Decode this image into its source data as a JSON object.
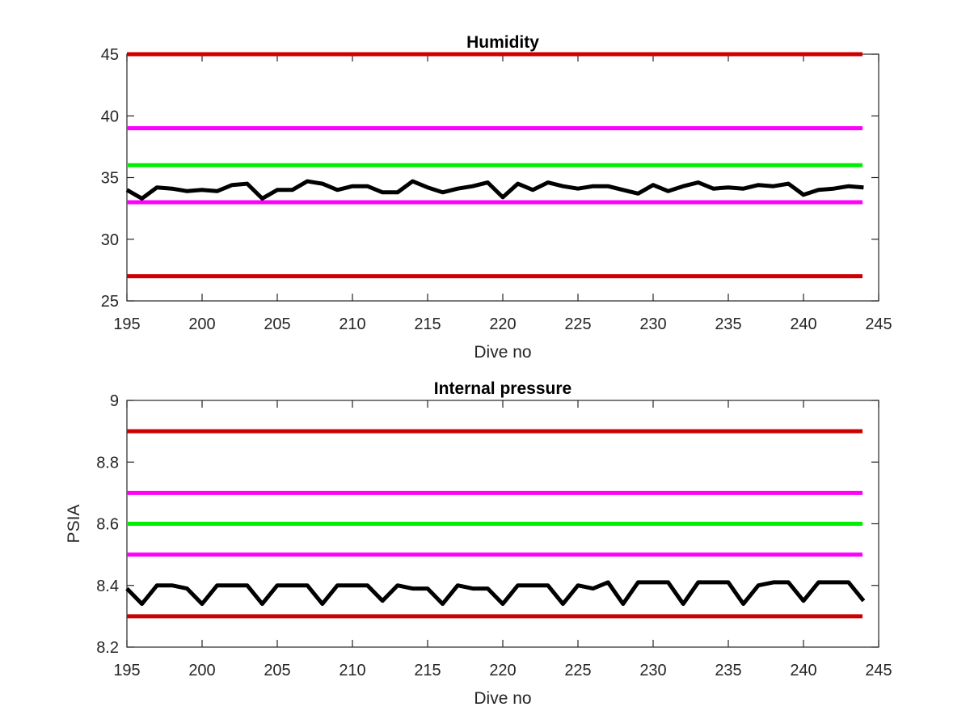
{
  "colors": {
    "red": "#cc0000",
    "magenta": "#ff00ff",
    "green": "#00ee00",
    "black": "#000000",
    "axis": "#262626"
  },
  "chart_data": [
    {
      "type": "line",
      "title": "Humidity",
      "xlabel": "Dive no",
      "ylabel": "",
      "xlim": [
        195,
        245
      ],
      "ylim": [
        25,
        45
      ],
      "xticks": [
        195,
        200,
        205,
        210,
        215,
        220,
        225,
        230,
        235,
        240,
        245
      ],
      "yticks": [
        25,
        30,
        35,
        40,
        45
      ],
      "ytick_labels": [
        "25",
        "30",
        "35",
        "40",
        "45"
      ],
      "grid": false,
      "thresholds": [
        {
          "y": 45,
          "color": "red"
        },
        {
          "y": 39,
          "color": "magenta"
        },
        {
          "y": 36,
          "color": "green"
        },
        {
          "y": 33,
          "color": "magenta"
        },
        {
          "y": 27,
          "color": "red"
        }
      ],
      "x": [
        195,
        196,
        197,
        198,
        199,
        200,
        201,
        202,
        203,
        204,
        205,
        206,
        207,
        208,
        209,
        210,
        211,
        212,
        213,
        214,
        215,
        216,
        217,
        218,
        219,
        220,
        221,
        222,
        223,
        224,
        225,
        226,
        227,
        228,
        229,
        230,
        231,
        232,
        233,
        234,
        235,
        236,
        237,
        238,
        239,
        240,
        241,
        242,
        243,
        244
      ],
      "values": [
        34.0,
        33.3,
        34.2,
        34.1,
        33.9,
        34.0,
        33.9,
        34.4,
        34.5,
        33.3,
        34.0,
        34.0,
        34.7,
        34.5,
        34.0,
        34.3,
        34.3,
        33.8,
        33.8,
        34.7,
        34.2,
        33.8,
        34.1,
        34.3,
        34.6,
        33.4,
        34.5,
        34.0,
        34.6,
        34.3,
        34.1,
        34.3,
        34.3,
        34.0,
        33.7,
        34.4,
        33.9,
        34.3,
        34.6,
        34.1,
        34.2,
        34.1,
        34.4,
        34.3,
        34.5,
        33.6,
        34.0,
        34.1,
        34.3,
        34.2
      ]
    },
    {
      "type": "line",
      "title": "Internal pressure",
      "xlabel": "Dive no",
      "ylabel": "PSIA",
      "xlim": [
        195,
        245
      ],
      "ylim": [
        8.2,
        9
      ],
      "xticks": [
        195,
        200,
        205,
        210,
        215,
        220,
        225,
        230,
        235,
        240,
        245
      ],
      "yticks": [
        8.2,
        8.4,
        8.6,
        8.8,
        9
      ],
      "ytick_labels": [
        "8.2",
        "8.4",
        "8.6",
        "8.8",
        "9"
      ],
      "grid": false,
      "thresholds": [
        {
          "y": 8.9,
          "color": "red"
        },
        {
          "y": 8.7,
          "color": "magenta"
        },
        {
          "y": 8.6,
          "color": "green"
        },
        {
          "y": 8.5,
          "color": "magenta"
        },
        {
          "y": 8.3,
          "color": "red"
        }
      ],
      "x": [
        195,
        196,
        197,
        198,
        199,
        200,
        201,
        202,
        203,
        204,
        205,
        206,
        207,
        208,
        209,
        210,
        211,
        212,
        213,
        214,
        215,
        216,
        217,
        218,
        219,
        220,
        221,
        222,
        223,
        224,
        225,
        226,
        227,
        228,
        229,
        230,
        231,
        232,
        233,
        234,
        235,
        236,
        237,
        238,
        239,
        240,
        241,
        242,
        243,
        244
      ],
      "values": [
        8.39,
        8.34,
        8.4,
        8.4,
        8.39,
        8.34,
        8.4,
        8.4,
        8.4,
        8.34,
        8.4,
        8.4,
        8.4,
        8.34,
        8.4,
        8.4,
        8.4,
        8.35,
        8.4,
        8.39,
        8.39,
        8.34,
        8.4,
        8.39,
        8.39,
        8.34,
        8.4,
        8.4,
        8.4,
        8.34,
        8.4,
        8.39,
        8.41,
        8.34,
        8.41,
        8.41,
        8.41,
        8.34,
        8.41,
        8.41,
        8.41,
        8.34,
        8.4,
        8.41,
        8.41,
        8.35,
        8.41,
        8.41,
        8.41,
        8.35
      ]
    }
  ]
}
